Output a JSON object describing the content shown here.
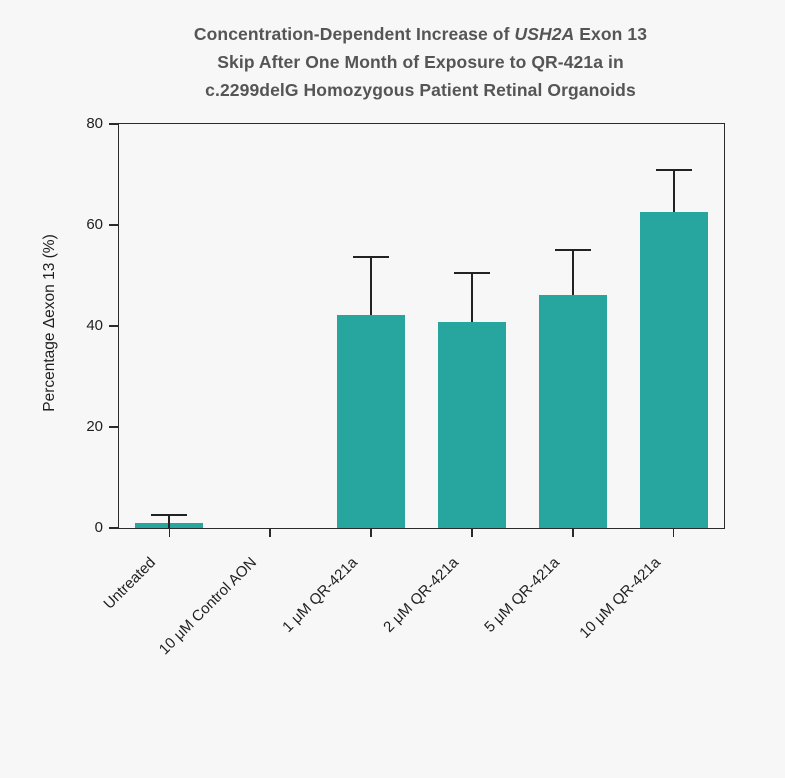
{
  "page": {
    "background": "#f7f7f7"
  },
  "title": {
    "line1_pre": "Concentration-Dependent Increase of ",
    "line1_italic": "USH2A",
    "line1_post": " Exon 13",
    "line2": "Skip After One Month of Exposure to QR-421a in",
    "line3": "c.2299delG Homozygous Patient Retinal Organoids",
    "color": "#555555"
  },
  "chart_data": {
    "type": "bar",
    "title": "Concentration-Dependent Increase of USH2A Exon 13 Skip After One Month of Exposure to QR-421a in c.2299delG Homozygous Patient Retinal Organoids",
    "categories": [
      "Untreated",
      "10 μM Control AON",
      "1 μM QR-421a",
      "2 μM QR-421a",
      "5 μM QR-421a",
      "10 μM QR-421a"
    ],
    "values": [
      1.0,
      0,
      42.2,
      40.7,
      46.2,
      62.5
    ],
    "errors_upper": [
      1.6,
      0,
      11.4,
      9.8,
      8.8,
      8.4
    ],
    "xlabel": "",
    "ylabel": "Percentage Δexon 13 (%)",
    "ylim": [
      0,
      80
    ],
    "yticks": [
      0,
      20,
      40,
      60,
      80
    ],
    "grid": false,
    "legend": null,
    "bar_color": "#26a69e",
    "error_bar_color": "#222222",
    "axis_color": "#2b2b2b",
    "tick_label_color": "#1f1f1f"
  }
}
